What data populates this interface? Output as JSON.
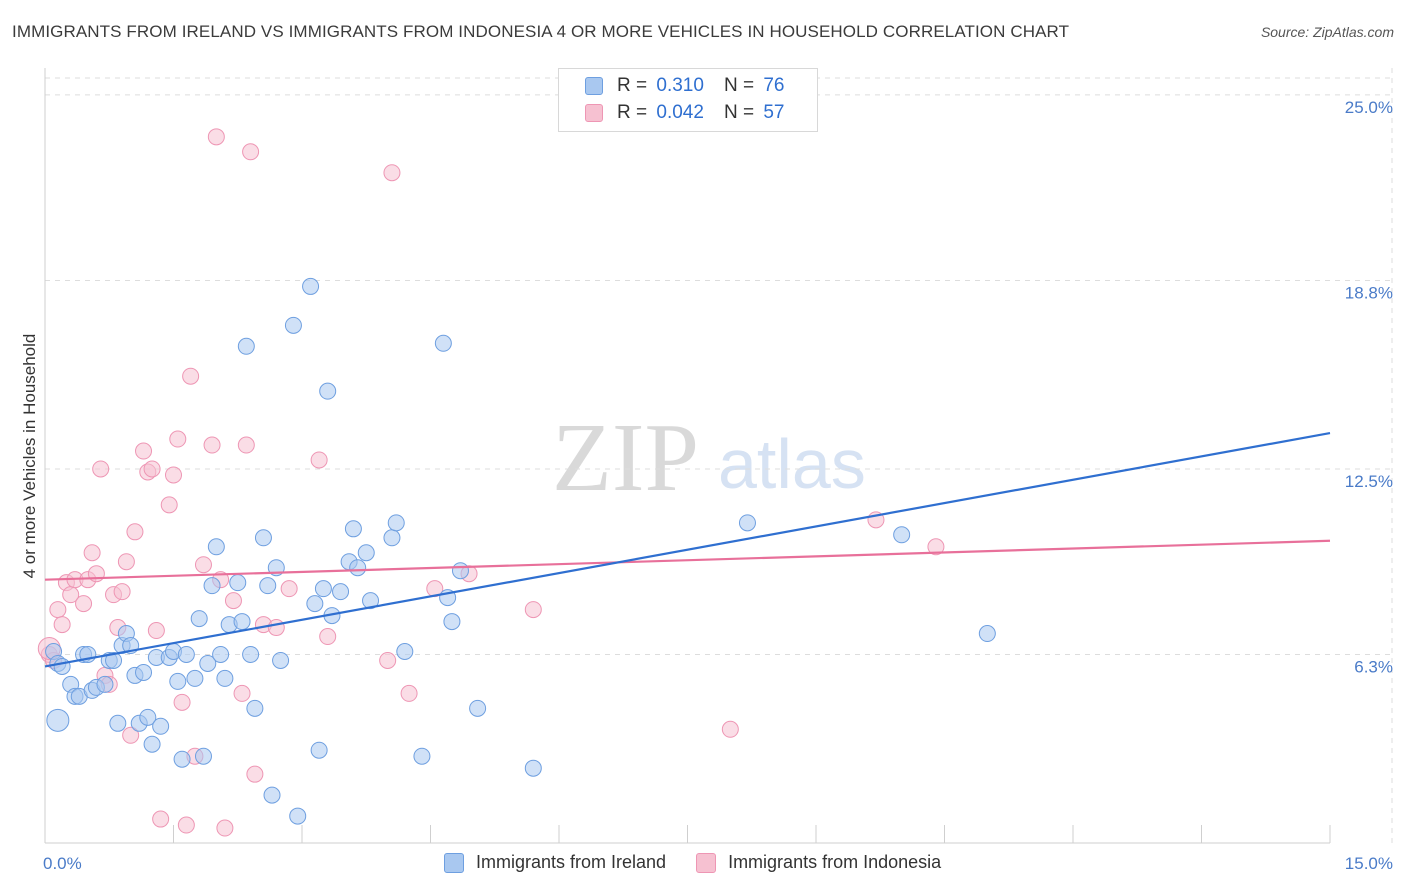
{
  "header": {
    "title": "IMMIGRANTS FROM IRELAND VS IMMIGRANTS FROM INDONESIA 4 OR MORE VEHICLES IN HOUSEHOLD CORRELATION CHART",
    "source": "Source: ZipAtlas.com"
  },
  "legend": {
    "rows": [
      {
        "r_label": "R =",
        "r_value": "0.310",
        "n_label": "N =",
        "n_value": "76"
      },
      {
        "r_label": "R =",
        "r_value": "0.042",
        "n_label": "N =",
        "n_value": "57"
      }
    ]
  },
  "bottom_legend": [
    "Immigrants from Ireland",
    "Immigrants from Indonesia"
  ],
  "watermark": {
    "zip": "ZIP",
    "atlas": "atlas"
  },
  "colors": {
    "ireland_fill": "#a9c8f0",
    "ireland_stroke": "#6e9fe0",
    "ireland_line": "#2f6fd0",
    "indonesia_fill": "#f6c1d1",
    "indonesia_stroke": "#ee96b4",
    "indonesia_line": "#e8709a",
    "axis_label": "#4a7bc8",
    "grid": "#dddddd"
  },
  "chart_data": {
    "type": "scatter",
    "title": "IMMIGRANTS FROM IRELAND VS IMMIGRANTS FROM INDONESIA 4 OR MORE VEHICLES IN HOUSEHOLD CORRELATION CHART",
    "xlabel": "",
    "ylabel": "4 or more Vehicles in Household",
    "xlim": [
      0,
      15
    ],
    "ylim": [
      0,
      25.9
    ],
    "x_tick_labels": [
      "0.0%",
      "15.0%"
    ],
    "y_ticks": [
      6.3,
      12.5,
      18.8,
      25.0
    ],
    "y_tick_labels": [
      "6.3%",
      "12.5%",
      "18.8%",
      "25.0%"
    ],
    "grid": true,
    "legend_position": "top-center",
    "series": [
      {
        "name": "Immigrants from Ireland",
        "trend": [
          [
            0.0,
            5.9
          ],
          [
            15.0,
            13.7
          ]
        ],
        "points": [
          [
            0.1,
            6.4
          ],
          [
            0.15,
            6.0
          ],
          [
            0.2,
            5.9
          ],
          [
            0.3,
            5.3
          ],
          [
            0.35,
            4.9
          ],
          [
            0.4,
            4.9
          ],
          [
            0.45,
            6.3
          ],
          [
            0.5,
            6.3
          ],
          [
            0.55,
            5.1
          ],
          [
            0.6,
            5.2
          ],
          [
            0.7,
            5.3
          ],
          [
            0.75,
            6.1
          ],
          [
            0.8,
            6.1
          ],
          [
            0.85,
            4.0
          ],
          [
            0.9,
            6.6
          ],
          [
            0.95,
            7.0
          ],
          [
            1.0,
            6.6
          ],
          [
            1.05,
            5.6
          ],
          [
            1.1,
            4.0
          ],
          [
            1.15,
            5.7
          ],
          [
            1.2,
            4.2
          ],
          [
            1.25,
            3.3
          ],
          [
            1.3,
            6.2
          ],
          [
            1.35,
            3.9
          ],
          [
            1.45,
            6.2
          ],
          [
            1.5,
            6.4
          ],
          [
            1.55,
            5.4
          ],
          [
            1.6,
            2.8
          ],
          [
            1.65,
            6.3
          ],
          [
            1.75,
            5.5
          ],
          [
            1.8,
            7.5
          ],
          [
            1.85,
            2.9
          ],
          [
            1.9,
            6.0
          ],
          [
            1.95,
            8.6
          ],
          [
            2.0,
            9.9
          ],
          [
            2.05,
            6.3
          ],
          [
            2.1,
            5.5
          ],
          [
            2.15,
            7.3
          ],
          [
            2.25,
            8.7
          ],
          [
            2.3,
            7.4
          ],
          [
            2.35,
            16.6
          ],
          [
            2.4,
            6.3
          ],
          [
            2.45,
            4.5
          ],
          [
            2.55,
            10.2
          ],
          [
            2.6,
            8.6
          ],
          [
            2.65,
            1.6
          ],
          [
            2.7,
            9.2
          ],
          [
            2.75,
            6.1
          ],
          [
            2.9,
            17.3
          ],
          [
            2.95,
            0.9
          ],
          [
            3.1,
            18.6
          ],
          [
            3.15,
            8.0
          ],
          [
            3.2,
            3.1
          ],
          [
            3.25,
            8.5
          ],
          [
            3.3,
            15.1
          ],
          [
            3.35,
            7.6
          ],
          [
            3.45,
            8.4
          ],
          [
            3.55,
            9.4
          ],
          [
            3.6,
            10.5
          ],
          [
            3.65,
            9.2
          ],
          [
            3.75,
            9.7
          ],
          [
            3.8,
            8.1
          ],
          [
            4.05,
            10.2
          ],
          [
            4.1,
            10.7
          ],
          [
            4.2,
            6.4
          ],
          [
            4.4,
            2.9
          ],
          [
            4.65,
            16.7
          ],
          [
            4.7,
            8.2
          ],
          [
            4.75,
            7.4
          ],
          [
            4.85,
            9.1
          ],
          [
            5.05,
            4.5
          ],
          [
            5.7,
            2.5
          ],
          [
            8.2,
            10.7
          ],
          [
            10.0,
            10.3
          ],
          [
            11.0,
            7.0
          ],
          [
            0.15,
            4.1
          ]
        ]
      },
      {
        "name": "Immigrants from Indonesia",
        "trend": [
          [
            0.0,
            8.8
          ],
          [
            15.0,
            10.1
          ]
        ],
        "points": [
          [
            0.05,
            6.3
          ],
          [
            0.1,
            6.1
          ],
          [
            0.15,
            7.8
          ],
          [
            0.2,
            7.3
          ],
          [
            0.25,
            8.7
          ],
          [
            0.3,
            8.3
          ],
          [
            0.35,
            8.8
          ],
          [
            0.45,
            8.0
          ],
          [
            0.5,
            8.8
          ],
          [
            0.55,
            9.7
          ],
          [
            0.6,
            9.0
          ],
          [
            0.65,
            12.5
          ],
          [
            0.7,
            5.6
          ],
          [
            0.75,
            5.3
          ],
          [
            0.8,
            8.3
          ],
          [
            0.85,
            7.2
          ],
          [
            0.9,
            8.4
          ],
          [
            0.95,
            9.4
          ],
          [
            1.0,
            3.6
          ],
          [
            1.05,
            10.4
          ],
          [
            1.15,
            13.1
          ],
          [
            1.2,
            12.4
          ],
          [
            1.25,
            12.5
          ],
          [
            1.3,
            7.1
          ],
          [
            1.35,
            0.8
          ],
          [
            1.45,
            11.3
          ],
          [
            1.5,
            12.3
          ],
          [
            1.55,
            13.5
          ],
          [
            1.6,
            4.7
          ],
          [
            1.65,
            0.6
          ],
          [
            1.7,
            15.6
          ],
          [
            1.75,
            2.9
          ],
          [
            1.85,
            9.3
          ],
          [
            1.95,
            13.3
          ],
          [
            2.0,
            23.6
          ],
          [
            2.05,
            8.8
          ],
          [
            2.1,
            0.5
          ],
          [
            2.2,
            8.1
          ],
          [
            2.3,
            5.0
          ],
          [
            2.35,
            13.3
          ],
          [
            2.4,
            23.1
          ],
          [
            2.45,
            2.3
          ],
          [
            2.55,
            7.3
          ],
          [
            2.7,
            7.2
          ],
          [
            2.85,
            8.5
          ],
          [
            3.2,
            12.8
          ],
          [
            3.3,
            6.9
          ],
          [
            4.0,
            6.1
          ],
          [
            4.05,
            22.4
          ],
          [
            4.25,
            5.0
          ],
          [
            4.55,
            8.5
          ],
          [
            4.95,
            9.0
          ],
          [
            5.7,
            7.8
          ],
          [
            8.0,
            3.8
          ],
          [
            9.7,
            10.8
          ],
          [
            10.4,
            9.9
          ],
          [
            0.05,
            6.5
          ]
        ]
      }
    ]
  }
}
